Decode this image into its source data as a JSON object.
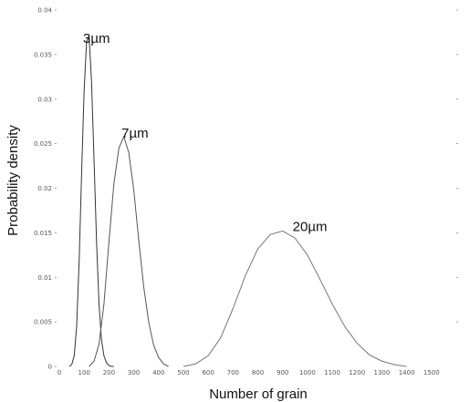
{
  "chart_data": {
    "type": "line",
    "title": "",
    "xlabel": "Number of grain",
    "ylabel": "Probability density",
    "xlim": [
      0,
      1600
    ],
    "ylim": [
      0,
      0.04
    ],
    "grid": false,
    "x_ticks": [
      {
        "value": 0,
        "label": "0"
      },
      {
        "value": 100,
        "label": "100"
      },
      {
        "value": 200,
        "label": "200"
      },
      {
        "value": 300,
        "label": "300"
      },
      {
        "value": 400,
        "label": "400"
      },
      {
        "value": 500,
        "label": "500"
      },
      {
        "value": 600,
        "label": "600"
      },
      {
        "value": 700,
        "label": "700"
      },
      {
        "value": 800,
        "label": "800"
      },
      {
        "value": 900,
        "label": "900"
      },
      {
        "value": 1000,
        "label": "1000"
      },
      {
        "value": 1100,
        "label": "1100"
      },
      {
        "value": 1200,
        "label": "1200"
      },
      {
        "value": 1300,
        "label": "1300"
      },
      {
        "value": 1400,
        "label": "1400"
      },
      {
        "value": 1500,
        "label": "1500"
      }
    ],
    "y_ticks": [
      {
        "value": 0,
        "label": "0"
      },
      {
        "value": 0.005,
        "label": "0.005"
      },
      {
        "value": 0.01,
        "label": "0.01"
      },
      {
        "value": 0.015,
        "label": "0.015"
      },
      {
        "value": 0.02,
        "label": "0.02"
      },
      {
        "value": 0.025,
        "label": "0.025"
      },
      {
        "value": 0.03,
        "label": "0.03"
      },
      {
        "value": 0.035,
        "label": "0.035"
      },
      {
        "value": 0.04,
        "label": "0.04"
      }
    ],
    "annotations": [
      {
        "text": "3µm",
        "x": 150,
        "y": 0.0363
      },
      {
        "text": "7µm",
        "x": 305,
        "y": 0.0257
      },
      {
        "text": "20µm",
        "x": 1010,
        "y": 0.0152
      }
    ],
    "series": [
      {
        "color": "#333333",
        "x": [
          40,
          50,
          60,
          70,
          80,
          90,
          100,
          110,
          120,
          130,
          140,
          150,
          160,
          170,
          180,
          190,
          200,
          210,
          220
        ],
        "y": [
          0.0,
          0.0002,
          0.0012,
          0.0045,
          0.012,
          0.022,
          0.031,
          0.0365,
          0.037,
          0.032,
          0.023,
          0.014,
          0.007,
          0.003,
          0.0012,
          0.0004,
          0.0001,
          0.0,
          0.0
        ]
      },
      {
        "color": "#555555",
        "x": [
          120,
          140,
          160,
          180,
          200,
          220,
          240,
          260,
          280,
          300,
          320,
          340,
          360,
          380,
          400,
          420,
          440
        ],
        "y": [
          0.0,
          0.0006,
          0.0025,
          0.007,
          0.014,
          0.0205,
          0.0245,
          0.0258,
          0.024,
          0.0198,
          0.0142,
          0.009,
          0.005,
          0.0024,
          0.001,
          0.0003,
          0.0
        ]
      },
      {
        "color": "#777777",
        "x": [
          500,
          550,
          600,
          650,
          700,
          750,
          800,
          850,
          900,
          950,
          1000,
          1050,
          1100,
          1150,
          1200,
          1250,
          1300,
          1350,
          1400
        ],
        "y": [
          0.0,
          0.0003,
          0.0012,
          0.0032,
          0.0065,
          0.0102,
          0.0132,
          0.0148,
          0.0152,
          0.0144,
          0.0125,
          0.0098,
          0.007,
          0.0045,
          0.0026,
          0.0013,
          0.0006,
          0.0002,
          0.0
        ]
      }
    ]
  }
}
